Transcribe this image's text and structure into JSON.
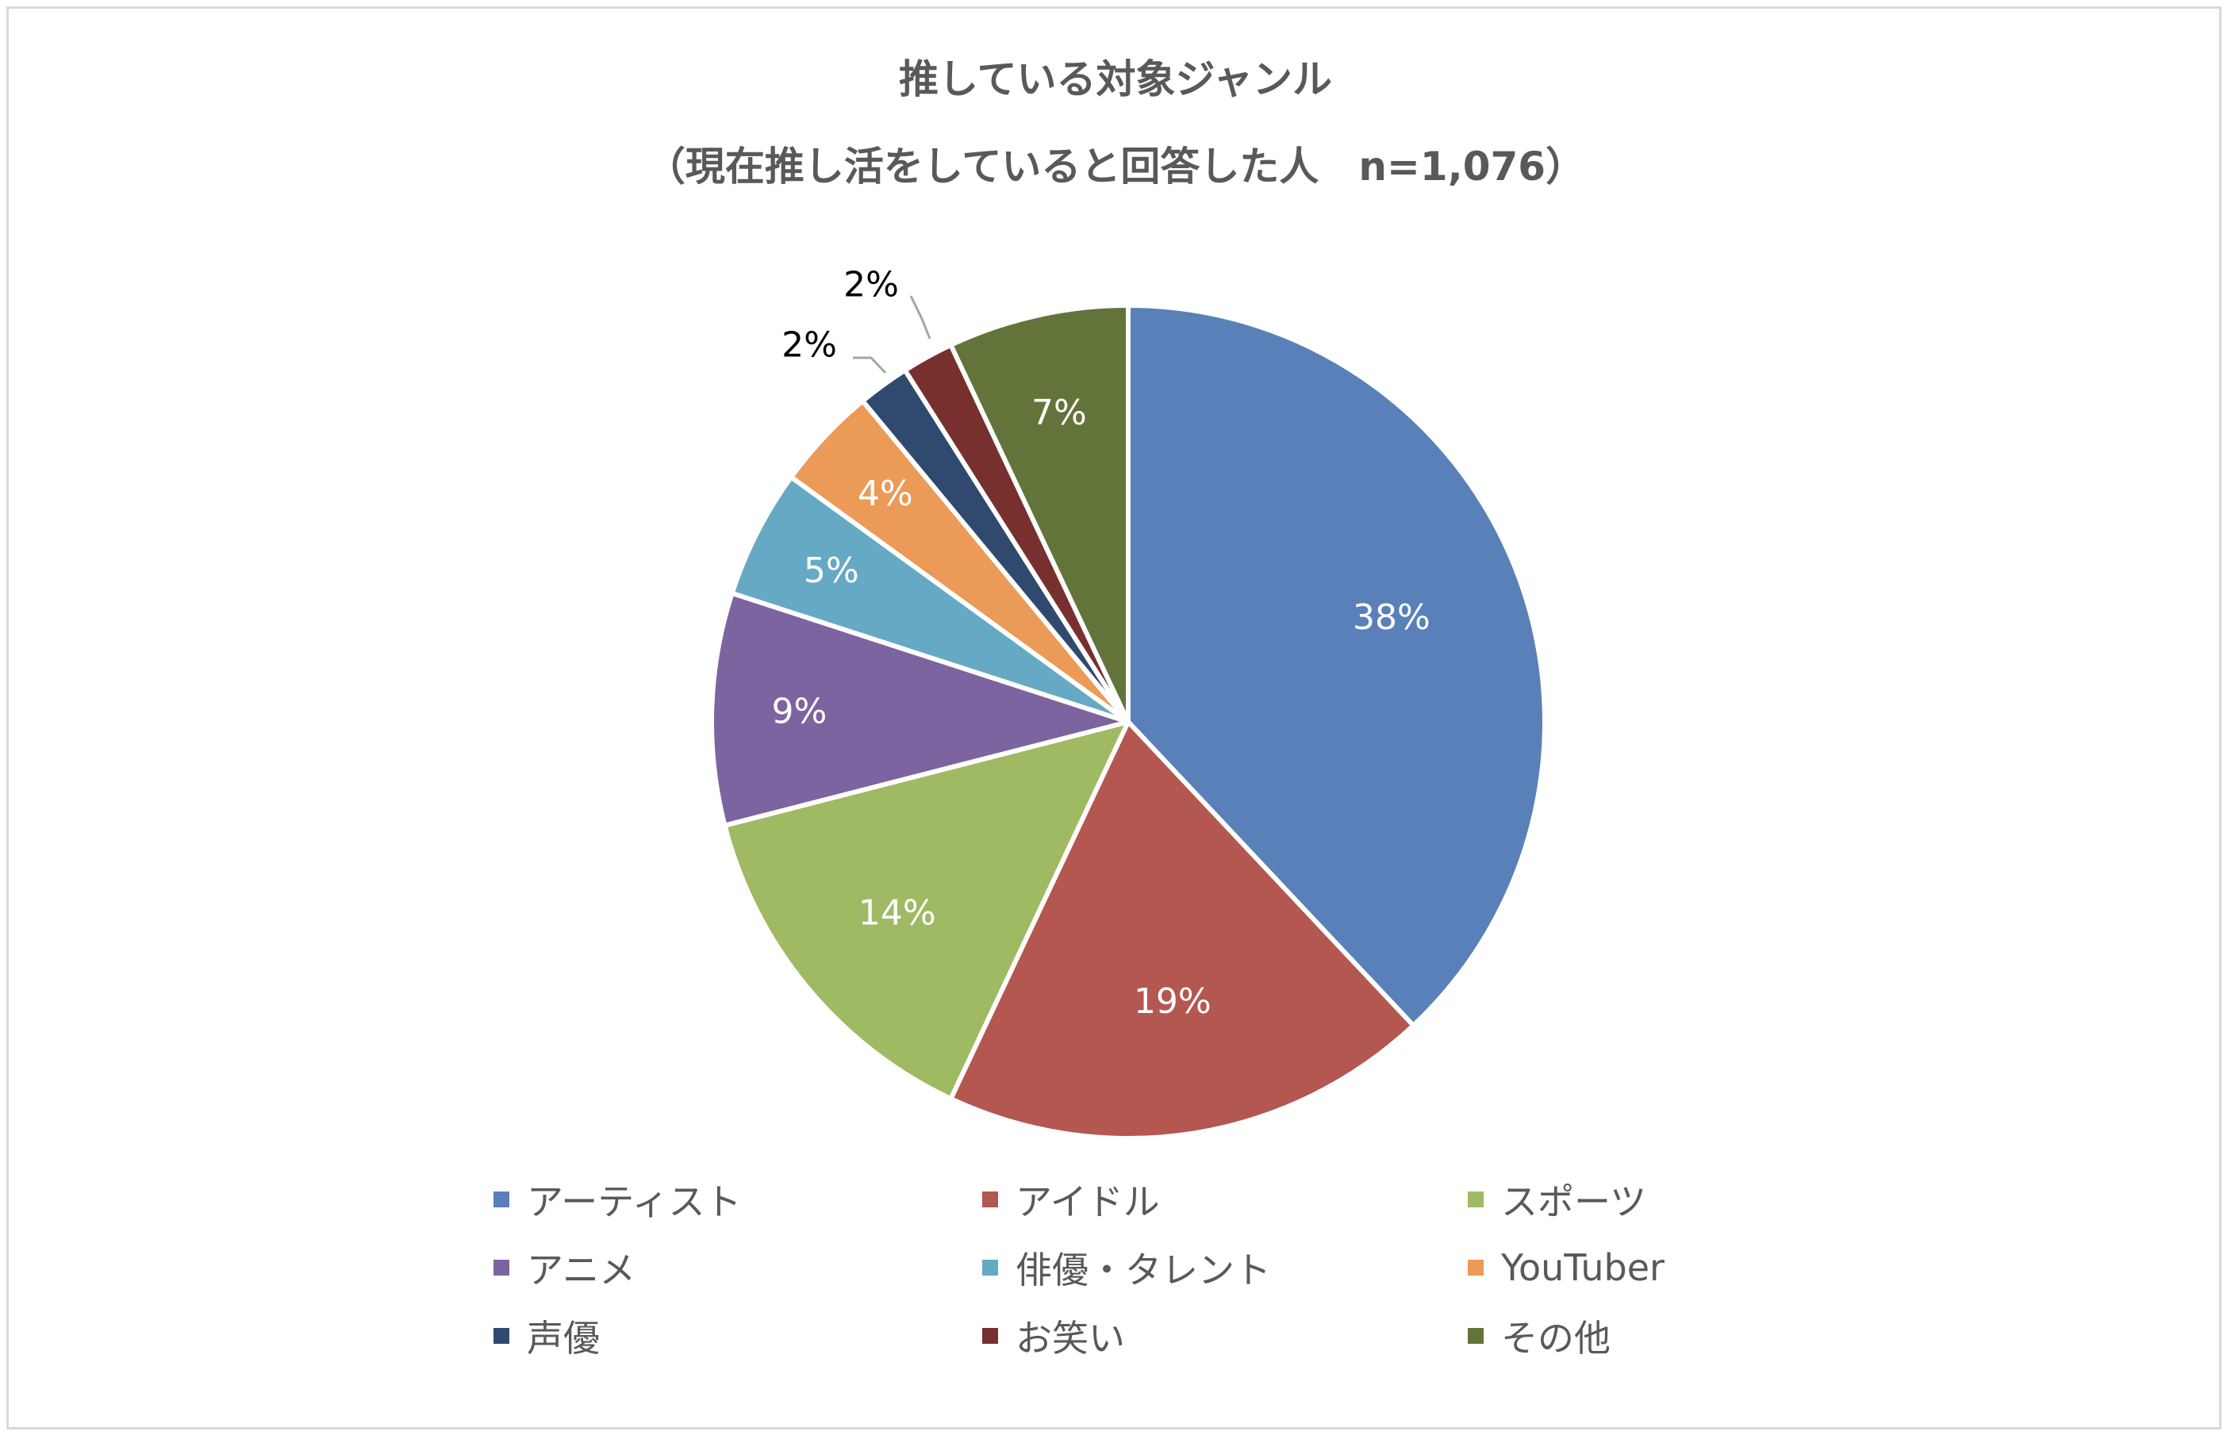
{
  "chart_data": {
    "type": "pie",
    "title": "推している対象ジャンル",
    "subtitle": "（現在推し活をしていると回答した人　n=1,076）",
    "legend_position": "bottom",
    "categories": [
      "アーティスト",
      "アイドル",
      "スポーツ",
      "アニメ",
      "俳優・タレント",
      "YouTuber",
      "声優",
      "お笑い",
      "その他"
    ],
    "values": [
      38,
      19,
      14,
      9,
      5,
      4,
      2,
      2,
      7
    ],
    "data_labels": [
      "38%",
      "19%",
      "14%",
      "9%",
      "5%",
      "4%",
      "2%",
      "2%",
      "7%"
    ],
    "colors": [
      "#5A80B9",
      "#B35750",
      "#A0BA64",
      "#7C64A0",
      "#66A9C4",
      "#EB9A57",
      "#2F4A6E",
      "#77302E",
      "#63743A"
    ]
  }
}
